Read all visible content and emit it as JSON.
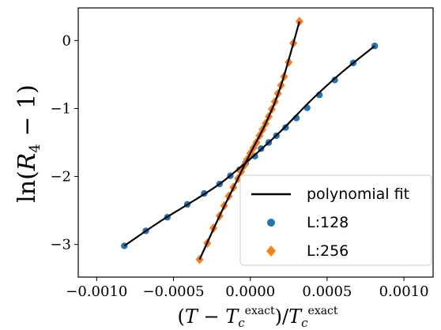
{
  "chart_data": {
    "type": "scatter",
    "xlabel": "(T − T_c^exact)/T_c^exact",
    "ylabel": "ln(R_4 − 1)",
    "xlim": [
      -0.00112,
      0.00119
    ],
    "ylim": [
      -3.48,
      0.48
    ],
    "x_ticks": [
      -0.001,
      -0.0005,
      0.0,
      0.0005,
      0.001
    ],
    "x_tick_labels": [
      "−0.0010",
      "−0.0005",
      "0.0000",
      "0.0005",
      "0.0010"
    ],
    "y_ticks": [
      -3,
      -2,
      -1,
      0
    ],
    "y_tick_labels": [
      "−3",
      "−2",
      "−1",
      "0"
    ],
    "grid": false,
    "legend_position": "lower-right",
    "legend": [
      {
        "label": "polynomial fit",
        "kind": "line",
        "color": "#000000"
      },
      {
        "label": "L:128",
        "kind": "circle",
        "color": "#1f77b4"
      },
      {
        "label": "L:256",
        "kind": "diamond",
        "color": "#ff7f0e"
      }
    ],
    "series": [
      {
        "name": "L:128",
        "marker": "circle",
        "color": "#1f77b4",
        "x": [
          -0.00082,
          -0.00068,
          -0.00054,
          -0.00041,
          -0.0003,
          -0.0002,
          -0.00013,
          -7e-05,
          -3e-05,
          3e-05,
          7e-05,
          0.00012,
          0.00017,
          0.00023,
          0.0003,
          0.00037,
          0.00045,
          0.00055,
          0.00067,
          0.00081
        ],
        "y": [
          -3.02,
          -2.8,
          -2.6,
          -2.41,
          -2.25,
          -2.11,
          -1.99,
          -1.9,
          -1.8,
          -1.7,
          -1.59,
          -1.5,
          -1.4,
          -1.28,
          -1.14,
          -0.99,
          -0.8,
          -0.58,
          -0.33,
          -0.08
        ]
      },
      {
        "name": "L:256",
        "marker": "diamond",
        "color": "#ff7f0e",
        "x": [
          -0.00033,
          -0.00028,
          -0.00024,
          -0.0002,
          -0.00017,
          -0.00014,
          -0.00011,
          -8e-05,
          -6e-05,
          -4e-05,
          -2e-05,
          0.0,
          2e-05,
          4e-05,
          6e-05,
          8e-05,
          0.0001,
          0.00012,
          0.00014,
          0.00016,
          0.00018,
          0.0002,
          0.00022,
          0.00025,
          0.00028,
          0.00032
        ],
        "y": [
          -3.22,
          -2.98,
          -2.76,
          -2.58,
          -2.43,
          -2.29,
          -2.16,
          -2.03,
          -1.93,
          -1.84,
          -1.75,
          -1.66,
          -1.58,
          -1.5,
          -1.4,
          -1.31,
          -1.22,
          -1.12,
          -1.01,
          -0.9,
          -0.78,
          -0.66,
          -0.53,
          -0.32,
          -0.04,
          0.28
        ]
      }
    ],
    "fits": [
      {
        "series": "L:128",
        "x": [
          -0.00082,
          -0.0006,
          -0.0004,
          -0.0002,
          0.0,
          0.0002,
          0.0004,
          0.0006,
          0.00081
        ],
        "y": [
          -3.02,
          -2.68,
          -2.4,
          -2.11,
          -1.74,
          -1.33,
          -0.87,
          -0.46,
          -0.08
        ]
      },
      {
        "series": "L:256",
        "x": [
          -0.00033,
          -0.0002,
          -0.0001,
          0.0,
          0.0001,
          0.0002,
          0.00032
        ],
        "y": [
          -3.22,
          -2.58,
          -2.12,
          -1.66,
          -1.22,
          -0.66,
          0.28
        ]
      }
    ]
  }
}
